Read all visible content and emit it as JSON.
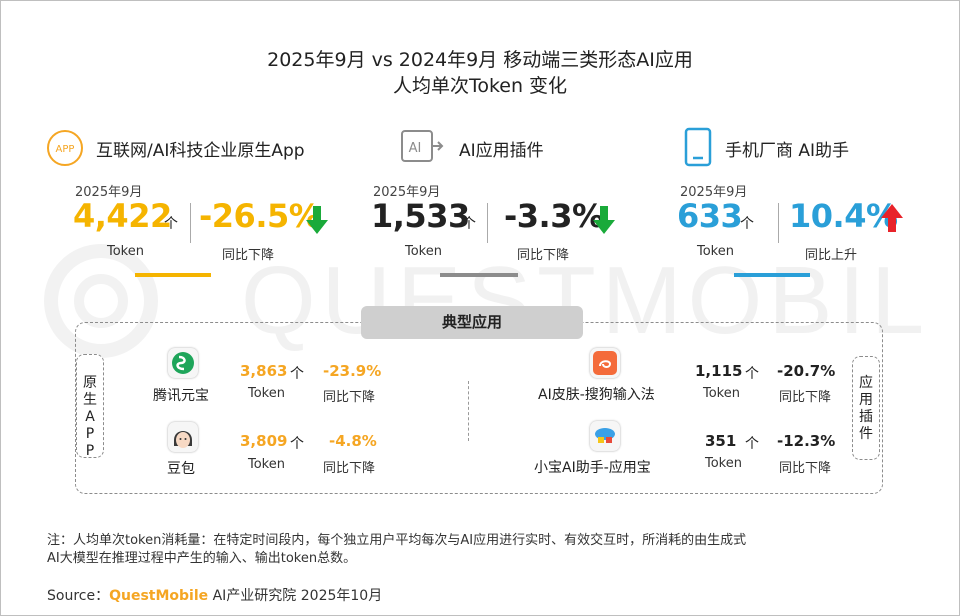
{
  "title_line1": "2025年9月 vs 2024年9月 移动端三类形态AI应用",
  "title_line2": "人均单次Token 变化",
  "watermark": "QUESTMOBILE",
  "categories": [
    {
      "name": "互联网/AI科技企业原生App",
      "icon": "app-circle-icon",
      "icon_text": "APP",
      "period": "2025年9月",
      "value": "4,422",
      "value_unit": "个",
      "value_label": "Token",
      "change": "-26.5%",
      "change_label": "同比下降",
      "direction": "down",
      "value_color": "#f5b400"
    },
    {
      "name": "AI应用插件",
      "icon": "ai-plugin-icon",
      "icon_text": "AI",
      "period": "2025年9月",
      "value": "1,533",
      "value_unit": "个",
      "value_label": "Token",
      "change": "-3.3%",
      "change_label": "同比下降",
      "direction": "down",
      "value_color": "#222222"
    },
    {
      "name": "手机厂商 AI助手",
      "icon": "phone-icon",
      "period": "2025年9月",
      "value": "633",
      "value_unit": "个",
      "value_label": "Token",
      "change": "10.4%",
      "change_label": "同比上升",
      "direction": "up",
      "value_color": "#2a9fd8"
    }
  ],
  "typical_label": "典型应用",
  "native_tag": "原生APP",
  "plugin_tag": "应用插件",
  "apps": [
    {
      "name": "腾讯元宝",
      "icon": "yuanbao-icon",
      "value": "3,863",
      "unit": "个",
      "label": "Token",
      "change": "-23.9%",
      "change_label": "同比下降"
    },
    {
      "name": "豆包",
      "icon": "doubao-icon",
      "value": "3,809",
      "unit": "个",
      "label": "Token",
      "change": "-4.8%",
      "change_label": "同比下降"
    },
    {
      "name": "AI皮肤-搜狗输入法",
      "icon": "sogou-icon",
      "value": "1,115",
      "unit": "个",
      "label": "Token",
      "change": "-20.7%",
      "change_label": "同比下降"
    },
    {
      "name": "小宝AI助手-应用宝",
      "icon": "yingyongbao-icon",
      "value": "351",
      "unit": "个",
      "label": "Token",
      "change": "-12.3%",
      "change_label": "同比下降"
    }
  ],
  "colors": {
    "orange": "#f5a623",
    "gray": "#8c8c8c",
    "blue": "#2a9fd8",
    "green": "#1aaa3a",
    "red": "#e8232a"
  },
  "note": "注：人均单次token消耗量：在特定时间段内，每个独立用户平均每次与AI应用进行实时、有效交互时，所消耗的由生成式",
  "note_line2": "AI大模型在推理过程中产生的输入、输出token总数。",
  "source_prefix": "Source：",
  "source_brand": "QuestMobile",
  "source_suffix": " AI产业研究院 2025年10月"
}
